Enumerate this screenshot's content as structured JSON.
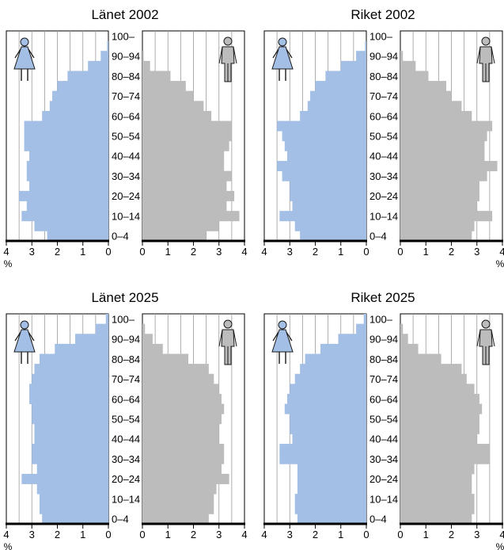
{
  "chart_data": [
    {
      "type": "bar",
      "title": "Länet 2002",
      "categories": [
        "0–4",
        "5–9",
        "10–14",
        "15–19",
        "20–24",
        "25–29",
        "30–34",
        "35–39",
        "40–44",
        "45–49",
        "50–54",
        "55–59",
        "60–64",
        "65–69",
        "70–74",
        "75–79",
        "80–84",
        "85–89",
        "90–94",
        "95–99",
        "100–"
      ],
      "age_labels": [
        "100–",
        "90–94",
        "80–84",
        "70–74",
        "60–64",
        "50–54",
        "40–44",
        "30–34",
        "20–24",
        "10–14",
        "0–4"
      ],
      "series": [
        {
          "side": "left",
          "color": "#a3bfe6",
          "values": [
            2.4,
            2.9,
            3.4,
            3.2,
            3.5,
            3.1,
            3.2,
            3.2,
            3.1,
            3.3,
            3.3,
            3.3,
            2.6,
            2.3,
            2.2,
            2.0,
            1.6,
            0.8,
            0.3,
            0.05,
            0.0
          ]
        },
        {
          "side": "right",
          "color": "#bcbcbc",
          "values": [
            2.5,
            3.0,
            3.8,
            3.3,
            3.6,
            3.3,
            3.5,
            3.2,
            3.2,
            3.4,
            3.5,
            3.5,
            2.7,
            2.4,
            2.0,
            1.7,
            1.1,
            0.3,
            0.05,
            0.0,
            0.0
          ]
        }
      ],
      "left_ticks": [
        "4",
        "3",
        "2",
        "1",
        "0"
      ],
      "right_ticks": [
        "0",
        "1",
        "2",
        "3",
        "4"
      ],
      "xlim": [
        0,
        4
      ],
      "unit": "%",
      "unit_side": "left"
    },
    {
      "type": "bar",
      "title": "Riket 2002",
      "categories": [
        "0–4",
        "5–9",
        "10–14",
        "15–19",
        "20–24",
        "25–29",
        "30–34",
        "35–39",
        "40–44",
        "45–49",
        "50–54",
        "55–59",
        "60–64",
        "65–69",
        "70–74",
        "75–79",
        "80–84",
        "85–89",
        "90–94",
        "95–99",
        "100–"
      ],
      "age_labels": [
        "100–",
        "90–94",
        "80–84",
        "70–74",
        "60–64",
        "50–54",
        "40–44",
        "30–34",
        "20–24",
        "10–14",
        "0–4"
      ],
      "series": [
        {
          "side": "left",
          "color": "#a3bfe6",
          "values": [
            2.6,
            2.8,
            3.4,
            2.9,
            3.0,
            3.0,
            3.3,
            3.5,
            3.1,
            3.2,
            3.3,
            3.5,
            2.6,
            2.3,
            2.2,
            2.0,
            1.6,
            1.0,
            0.4,
            0.05,
            0.0
          ]
        },
        {
          "side": "right",
          "color": "#bcbcbc",
          "values": [
            2.8,
            2.9,
            3.6,
            3.0,
            3.1,
            3.1,
            3.4,
            3.8,
            3.3,
            3.3,
            3.4,
            3.6,
            2.8,
            2.4,
            2.0,
            1.8,
            1.1,
            0.6,
            0.1,
            0.0,
            0.0
          ]
        }
      ],
      "left_ticks": [
        "4",
        "3",
        "2",
        "1",
        "0"
      ],
      "right_ticks": [
        "0",
        "1",
        "2",
        "3",
        "4"
      ],
      "xlim": [
        0,
        4
      ],
      "unit": "%",
      "unit_side": "right"
    },
    {
      "type": "bar",
      "title": "Länet 2025",
      "categories": [
        "0–4",
        "5–9",
        "10–14",
        "15–19",
        "20–24",
        "25–29",
        "30–34",
        "35–39",
        "40–44",
        "45–49",
        "50–54",
        "55–59",
        "60–64",
        "65–69",
        "70–74",
        "75–79",
        "80–84",
        "85–89",
        "90–94",
        "95–99",
        "100–"
      ],
      "age_labels": [
        "100–",
        "90–94",
        "80–84",
        "70–74",
        "60–64",
        "50–54",
        "40–44",
        "30–34",
        "20–24",
        "10–14",
        "0–4"
      ],
      "series": [
        {
          "side": "left",
          "color": "#a3bfe6",
          "values": [
            2.6,
            2.7,
            2.7,
            2.8,
            3.4,
            2.8,
            3.0,
            3.0,
            2.9,
            2.9,
            3.0,
            3.0,
            3.1,
            3.1,
            3.0,
            2.9,
            2.7,
            2.1,
            1.3,
            0.5,
            0.1
          ]
        },
        {
          "side": "right",
          "color": "#bcbcbc",
          "values": [
            2.6,
            2.8,
            2.8,
            2.9,
            3.4,
            3.1,
            3.2,
            3.2,
            3.0,
            3.0,
            3.1,
            3.2,
            3.1,
            3.0,
            2.8,
            2.6,
            1.8,
            0.8,
            0.4,
            0.1,
            0.0
          ]
        }
      ],
      "left_ticks": [
        "4",
        "3",
        "2",
        "1",
        "0"
      ],
      "right_ticks": [
        "0",
        "1",
        "2",
        "3",
        "4"
      ],
      "xlim": [
        0,
        4
      ],
      "unit": "%",
      "unit_side": "left"
    },
    {
      "type": "bar",
      "title": "Riket 2025",
      "categories": [
        "0–4",
        "5–9",
        "10–14",
        "15–19",
        "20–24",
        "25–29",
        "30–34",
        "35–39",
        "40–44",
        "45–49",
        "50–54",
        "55–59",
        "60–64",
        "65–69",
        "70–74",
        "75–79",
        "80–84",
        "85–89",
        "90–94",
        "95–99",
        "100–"
      ],
      "age_labels": [
        "100–",
        "90–94",
        "80–84",
        "70–74",
        "60–64",
        "50–54",
        "40–44",
        "30–34",
        "20–24",
        "10–14",
        "0–4"
      ],
      "series": [
        {
          "side": "left",
          "color": "#a3bfe6",
          "values": [
            2.7,
            2.8,
            2.8,
            2.7,
            2.7,
            2.7,
            3.4,
            3.4,
            2.9,
            3.0,
            3.0,
            3.2,
            3.1,
            3.0,
            2.8,
            2.6,
            2.4,
            1.8,
            1.1,
            0.4,
            0.1
          ]
        },
        {
          "side": "right",
          "color": "#bcbcbc",
          "values": [
            2.8,
            2.9,
            2.9,
            2.8,
            2.8,
            2.9,
            3.5,
            3.5,
            3.0,
            3.1,
            3.1,
            3.2,
            3.1,
            2.9,
            2.6,
            2.4,
            1.6,
            0.7,
            0.3,
            0.1,
            0.0
          ]
        }
      ],
      "left_ticks": [
        "4",
        "3",
        "2",
        "1",
        "0"
      ],
      "right_ticks": [
        "0",
        "1",
        "2",
        "3",
        "4"
      ],
      "xlim": [
        0,
        4
      ],
      "unit": "%",
      "unit_side": "right"
    }
  ],
  "icons": {
    "female": "female-figure-icon",
    "male": "male-figure-icon"
  },
  "colors": {
    "female": "#a3bfe6",
    "male": "#bcbcbc",
    "grid": "#9a9a9a",
    "axis": "#000000"
  }
}
